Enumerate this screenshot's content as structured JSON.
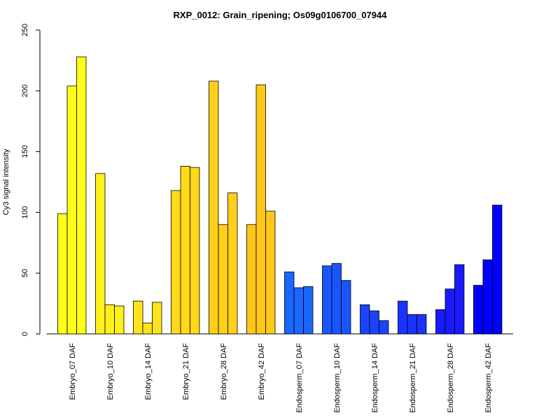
{
  "chart_data": {
    "type": "bar",
    "title": "RXP_0012: Grain_ripening; Os09g0106700_07944",
    "xlabel": "",
    "ylabel": "Cy3 signal intensity",
    "ylim": [
      0,
      250
    ],
    "yticks": [
      "0",
      "50",
      "100",
      "150",
      "200",
      "250"
    ],
    "grid": false,
    "legend": "none",
    "categories": [
      "Embryo_07 DAF",
      "Embryo_10 DAF",
      "Embryo_14 DAF",
      "Embryo_21 DAF",
      "Embryo_28 DAF",
      "Embryo_42 DAF",
      "Endosperm_07 DAF",
      "Endosperm_10 DAF",
      "Endosperm_14 DAF",
      "Endosperm_21 DAF",
      "Endosperm_28 DAF",
      "Endosperm_42 DAF"
    ],
    "group_colors": [
      "#ffff1a",
      "#fff01a",
      "#ffe41a",
      "#ffd91a",
      "#ffcf1a",
      "#ffc71a",
      "#1a66ff",
      "#1a55ff",
      "#1a44ff",
      "#1a33ff",
      "#1a1aff",
      "#0000ff"
    ],
    "values": [
      [
        99,
        204,
        228
      ],
      [
        132,
        24,
        23
      ],
      [
        27,
        9,
        26
      ],
      [
        118,
        138,
        137
      ],
      [
        208,
        90,
        116
      ],
      [
        90,
        205,
        101
      ],
      [
        51,
        38,
        39
      ],
      [
        56,
        58,
        44
      ],
      [
        24,
        19,
        11
      ],
      [
        27,
        16,
        16
      ],
      [
        20,
        37,
        57
      ],
      [
        40,
        61,
        106
      ]
    ]
  }
}
